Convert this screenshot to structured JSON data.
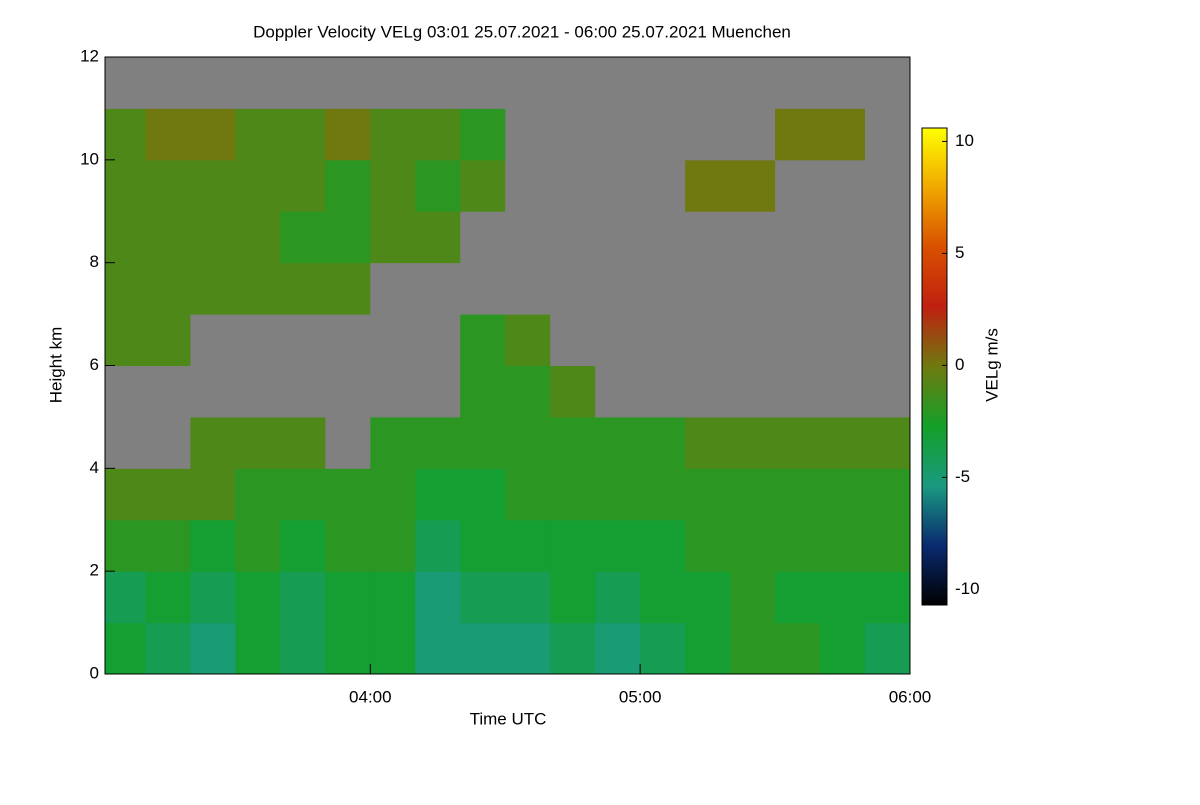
{
  "chart_data": {
    "type": "heatmap",
    "title": "Doppler Velocity VELg   03:01 25.07.2021 - 06:00 25.07.2021 Muenchen",
    "x_label": "Time UTC",
    "y_label": "Height km",
    "colorbar_label": "VELg m/s",
    "x_edges": [
      3.0167,
      3.1667,
      3.3333,
      3.5,
      3.6667,
      3.8333,
      4,
      4.1667,
      4.3333,
      4.5,
      4.6667,
      4.8333,
      5,
      5.1667,
      5.3333,
      5.5,
      5.6667,
      5.8333,
      6
    ],
    "y_edges": [
      0,
      1,
      2,
      3,
      4,
      5,
      6,
      7,
      8,
      9,
      10,
      11,
      12
    ],
    "z": [
      [
        -3,
        -4,
        -2,
        -1,
        null,
        null,
        -1,
        -1,
        -1,
        -1,
        -1,
        null
      ],
      [
        -4,
        -3,
        -2,
        -1,
        null,
        null,
        -1,
        -1,
        -1,
        -1,
        0,
        null
      ],
      [
        -5,
        -4,
        -3,
        -1,
        -1,
        null,
        null,
        -1,
        -1,
        -1,
        0,
        null
      ],
      [
        -3,
        -3,
        -2,
        -2,
        -1,
        null,
        null,
        -1,
        -1,
        -1,
        -1,
        null
      ],
      [
        -4,
        -4,
        -3,
        -2,
        -1,
        null,
        null,
        -1,
        -2,
        -1,
        -1,
        null
      ],
      [
        -3,
        -3,
        -2,
        -2,
        null,
        null,
        null,
        -1,
        -2,
        -2,
        0,
        null
      ],
      [
        -3,
        -3,
        -2,
        -2,
        -2,
        null,
        null,
        null,
        -1,
        -1,
        -1,
        null
      ],
      [
        -5,
        -5,
        -4,
        -3,
        -2,
        null,
        null,
        null,
        -1,
        -2,
        -1,
        null
      ],
      [
        -5,
        -4,
        -3,
        -3,
        -2,
        -2,
        -2,
        null,
        null,
        -1,
        -2,
        null
      ],
      [
        -5,
        -4,
        -3,
        -2,
        -2,
        -2,
        -1,
        null,
        null,
        null,
        null,
        null
      ],
      [
        -4,
        -3,
        -3,
        -2,
        -2,
        -1,
        null,
        null,
        null,
        null,
        null,
        null
      ],
      [
        -5,
        -4,
        -3,
        -2,
        -2,
        null,
        null,
        null,
        null,
        null,
        null,
        null
      ],
      [
        -4,
        -3,
        -3,
        -2,
        -2,
        null,
        null,
        null,
        null,
        null,
        null,
        null
      ],
      [
        -3,
        -3,
        -2,
        -2,
        -1,
        null,
        null,
        null,
        null,
        0,
        null,
        null
      ],
      [
        -2,
        -2,
        -2,
        -2,
        -1,
        null,
        null,
        null,
        null,
        0,
        null,
        null
      ],
      [
        -2,
        -3,
        -2,
        -2,
        -1,
        null,
        null,
        null,
        null,
        null,
        0,
        null
      ],
      [
        -3,
        -3,
        -2,
        -2,
        -1,
        null,
        null,
        null,
        null,
        null,
        0,
        null
      ],
      [
        -4,
        -3,
        -2,
        -2,
        -1,
        null,
        null,
        null,
        null,
        null,
        null,
        null
      ]
    ],
    "xlim": [
      3.0167,
      6
    ],
    "ylim": [
      0,
      12
    ],
    "zlim": [
      -10.7,
      10.6
    ],
    "xticks": [
      {
        "value": 4,
        "label": "04:00"
      },
      {
        "value": 5,
        "label": "05:00"
      },
      {
        "value": 6,
        "label": "06:00"
      }
    ],
    "yticks": [
      0,
      2,
      4,
      6,
      8,
      10,
      12
    ],
    "zticks": [
      -10,
      -5,
      0,
      5,
      10
    ],
    "colormap": [
      "#000000",
      "#0a2a70",
      "#1a9a80",
      "#14a028",
      "#6e7a10",
      "#c02010",
      "#d85000",
      "#f0a800",
      "#ffff00"
    ],
    "nan_color": "#808080"
  }
}
